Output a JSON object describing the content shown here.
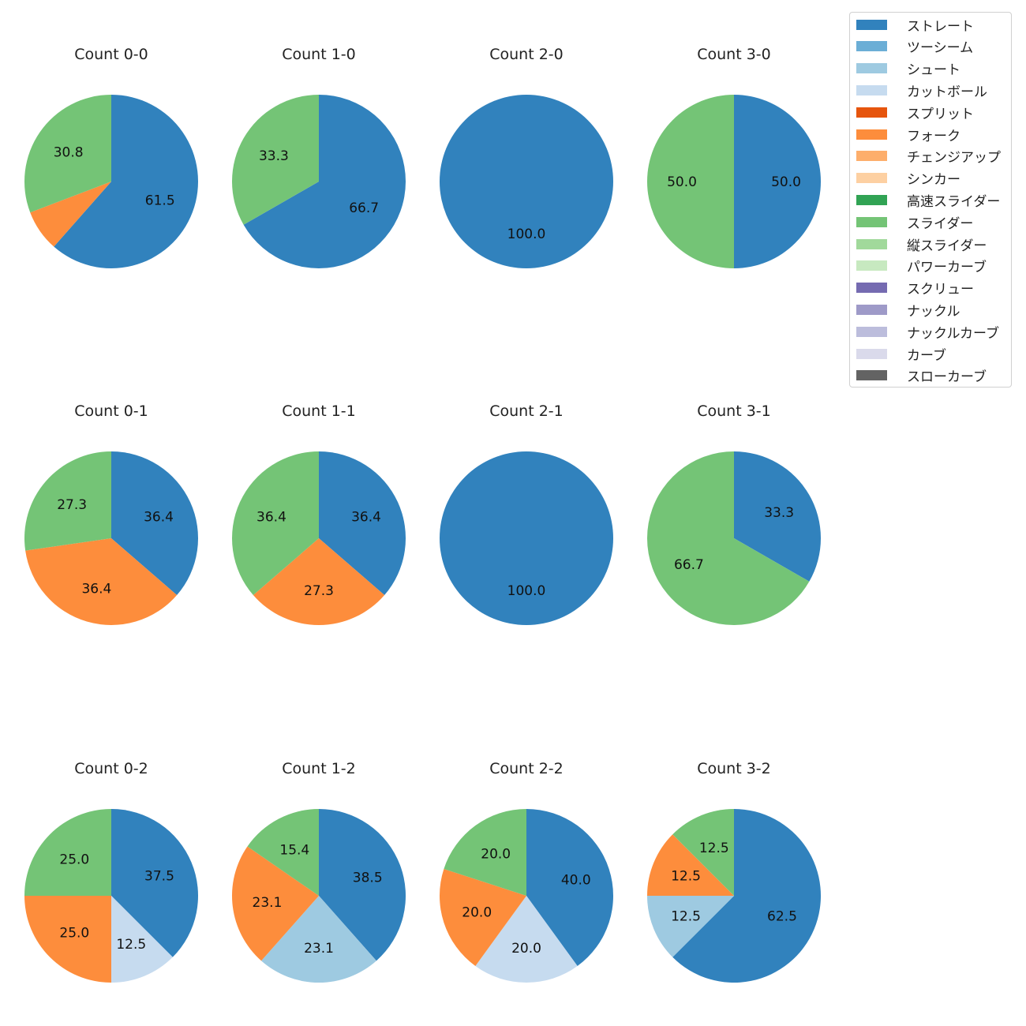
{
  "chart_data": {
    "type": "pie",
    "start_angle_deg": 90,
    "direction": "clockwise",
    "label_format": "%.1f",
    "label_min_pct": 10,
    "legend": {
      "placement": "top-right",
      "entries": [
        {
          "name": "ストレート",
          "color": "#3182bd"
        },
        {
          "name": "ツーシーム",
          "color": "#6baed6"
        },
        {
          "name": "シュート",
          "color": "#9ecae1"
        },
        {
          "name": "カットボール",
          "color": "#c6dbef"
        },
        {
          "name": "スプリット",
          "color": "#e6550d"
        },
        {
          "name": "フォーク",
          "color": "#fd8d3c"
        },
        {
          "name": "チェンジアップ",
          "color": "#fdae6b"
        },
        {
          "name": "シンカー",
          "color": "#fdd0a2"
        },
        {
          "name": "高速スライダー",
          "color": "#31a354"
        },
        {
          "name": "スライダー",
          "color": "#74c476"
        },
        {
          "name": "縦スライダー",
          "color": "#a1d99b"
        },
        {
          "name": "パワーカーブ",
          "color": "#c7e9c0"
        },
        {
          "name": "スクリュー",
          "color": "#756bb1"
        },
        {
          "name": "ナックル",
          "color": "#9e9ac8"
        },
        {
          "name": "ナックルカーブ",
          "color": "#bcbddc"
        },
        {
          "name": "カーブ",
          "color": "#dadaeb"
        },
        {
          "name": "スローカーブ",
          "color": "#636363"
        }
      ]
    },
    "pies": [
      {
        "title": "Count 0-0",
        "slices": [
          {
            "name": "ストレート",
            "value": 61.5
          },
          {
            "name": "フォーク",
            "value": 7.7
          },
          {
            "name": "スライダー",
            "value": 30.8
          }
        ]
      },
      {
        "title": "Count 1-0",
        "slices": [
          {
            "name": "ストレート",
            "value": 66.7
          },
          {
            "name": "スライダー",
            "value": 33.3
          }
        ]
      },
      {
        "title": "Count 2-0",
        "slices": [
          {
            "name": "ストレート",
            "value": 100.0
          }
        ]
      },
      {
        "title": "Count 3-0",
        "slices": [
          {
            "name": "ストレート",
            "value": 50.0
          },
          {
            "name": "スライダー",
            "value": 50.0
          }
        ]
      },
      {
        "title": "Count 0-1",
        "slices": [
          {
            "name": "ストレート",
            "value": 36.4
          },
          {
            "name": "フォーク",
            "value": 36.4
          },
          {
            "name": "スライダー",
            "value": 27.3
          }
        ]
      },
      {
        "title": "Count 1-1",
        "slices": [
          {
            "name": "ストレート",
            "value": 36.4
          },
          {
            "name": "フォーク",
            "value": 27.3
          },
          {
            "name": "スライダー",
            "value": 36.4
          }
        ]
      },
      {
        "title": "Count 2-1",
        "slices": [
          {
            "name": "ストレート",
            "value": 100.0
          }
        ]
      },
      {
        "title": "Count 3-1",
        "slices": [
          {
            "name": "ストレート",
            "value": 33.3
          },
          {
            "name": "スライダー",
            "value": 66.7
          }
        ]
      },
      {
        "title": "Count 0-2",
        "slices": [
          {
            "name": "ストレート",
            "value": 37.5
          },
          {
            "name": "カットボール",
            "value": 12.5
          },
          {
            "name": "フォーク",
            "value": 25.0
          },
          {
            "name": "スライダー",
            "value": 25.0
          }
        ]
      },
      {
        "title": "Count 1-2",
        "slices": [
          {
            "name": "ストレート",
            "value": 38.5
          },
          {
            "name": "シュート",
            "value": 23.1
          },
          {
            "name": "フォーク",
            "value": 23.1
          },
          {
            "name": "スライダー",
            "value": 15.4
          }
        ]
      },
      {
        "title": "Count 2-2",
        "slices": [
          {
            "name": "ストレート",
            "value": 40.0
          },
          {
            "name": "カットボール",
            "value": 20.0
          },
          {
            "name": "フォーク",
            "value": 20.0
          },
          {
            "name": "スライダー",
            "value": 20.0
          }
        ]
      },
      {
        "title": "Count 3-2",
        "slices": [
          {
            "name": "ストレート",
            "value": 62.5
          },
          {
            "name": "シュート",
            "value": 12.5
          },
          {
            "name": "フォーク",
            "value": 12.5
          },
          {
            "name": "スライダー",
            "value": 12.5
          }
        ]
      }
    ]
  }
}
